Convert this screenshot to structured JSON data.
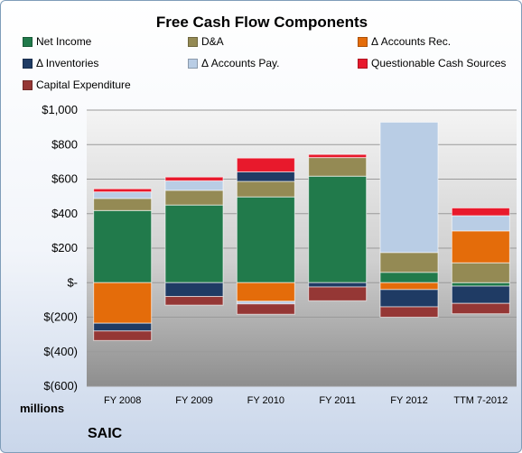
{
  "chart_data": {
    "type": "bar",
    "stacked": true,
    "title": "Free Cash Flow Components",
    "ylabel": "millions",
    "ylim": [
      -600,
      1000
    ],
    "yticks": [
      1000,
      800,
      600,
      400,
      200,
      0,
      -200,
      -400,
      -600
    ],
    "ytick_labels": [
      "$1,000",
      "$800",
      "$600",
      "$400",
      "$200",
      "$-",
      "$(200)",
      "$(400)",
      "$(600)"
    ],
    "categories": [
      "FY 2008",
      "FY 2009",
      "FY 2010",
      "FY 2011",
      "FY 2012",
      "TTM 7-2012"
    ],
    "grid": true,
    "legend_position": "top",
    "series": [
      {
        "name": "Net Income",
        "color": "#217a4b",
        "values": [
          418,
          450,
          497,
          617,
          60,
          -20
        ]
      },
      {
        "name": "D&A",
        "color": "#948a54",
        "values": [
          70,
          85,
          90,
          108,
          115,
          115
        ]
      },
      {
        "name": "Δ Accounts Rec.",
        "color": "#e46c0a",
        "values": [
          -235,
          0,
          -108,
          0,
          -40,
          185
        ]
      },
      {
        "name": "Δ Inventories",
        "color": "#1f3b64",
        "values": [
          -45,
          -80,
          55,
          -25,
          -100,
          -100
        ]
      },
      {
        "name": "Δ Accounts Pay.",
        "color": "#b9cde5",
        "values": [
          38,
          55,
          -15,
          0,
          755,
          88
        ]
      },
      {
        "name": "Questionable Cash Sources",
        "color": "#e8192c",
        "values": [
          18,
          22,
          80,
          18,
          0,
          45
        ]
      },
      {
        "name": "Capital Expenditure",
        "color": "#953735",
        "values": [
          -55,
          -50,
          -60,
          -80,
          -60,
          -60
        ]
      }
    ]
  },
  "footer": {
    "brand": "SAIC"
  }
}
